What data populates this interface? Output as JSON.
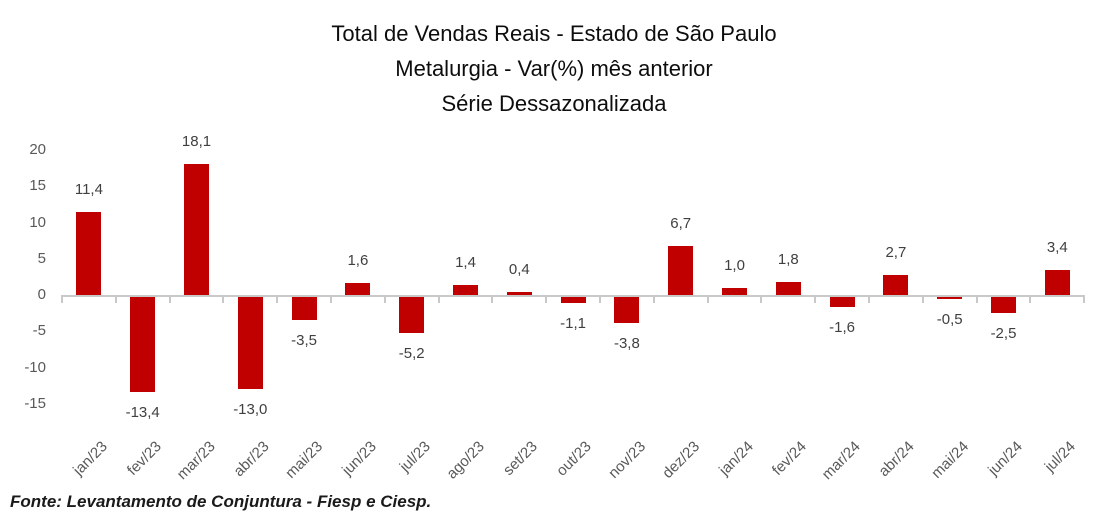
{
  "title": {
    "line1": "Total de Vendas Reais - Estado de São Paulo",
    "line2": "Metalurgia - Var(%) mês anterior",
    "line3": "Série Dessazonalizada"
  },
  "source": "Fonte: Levantamento de Conjuntura - Fiesp e Ciesp.",
  "chart_data": {
    "type": "bar",
    "title": "Total de Vendas Reais - Estado de São Paulo — Metalurgia - Var(%) mês anterior — Série Dessazonalizada",
    "xlabel": "",
    "ylabel": "",
    "categories": [
      "jan/23",
      "fev/23",
      "mar/23",
      "abr/23",
      "mai/23",
      "jun/23",
      "jul/23",
      "ago/23",
      "set/23",
      "out/23",
      "nov/23",
      "dez/23",
      "jan/24",
      "fev/24",
      "mar/24",
      "abr/24",
      "mai/24",
      "jun/24",
      "jul/24"
    ],
    "values": [
      11.4,
      -13.4,
      18.1,
      -13.0,
      -3.5,
      1.6,
      -5.2,
      1.4,
      0.4,
      -1.1,
      -3.8,
      6.7,
      1.0,
      1.8,
      -1.6,
      2.7,
      -0.5,
      -2.5,
      3.4
    ],
    "value_labels": [
      "11,4",
      "-13,4",
      "18,1",
      "-13,0",
      "-3,5",
      "1,6",
      "-5,2",
      "1,4",
      "0,4",
      "-1,1",
      "-3,8",
      "6,7",
      "1,0",
      "1,8",
      "-1,6",
      "2,7",
      "-0,5",
      "-2,5",
      "3,4"
    ],
    "y_ticks": [
      20,
      15,
      10,
      5,
      0,
      -5,
      -10,
      -15
    ],
    "y_tick_labels": [
      "20",
      "15",
      "10",
      "5",
      "0",
      "-5",
      "-10",
      "-15"
    ],
    "ylim": [
      -15,
      20
    ],
    "grid": false,
    "legend": false,
    "annotations": "data labels outside end of each bar",
    "colors": {
      "bar": "#c00000",
      "axis": "#c9c9c9",
      "axis_tick_labels": "#595959",
      "data_labels": "#404040",
      "title": "#0d0d0d"
    }
  }
}
